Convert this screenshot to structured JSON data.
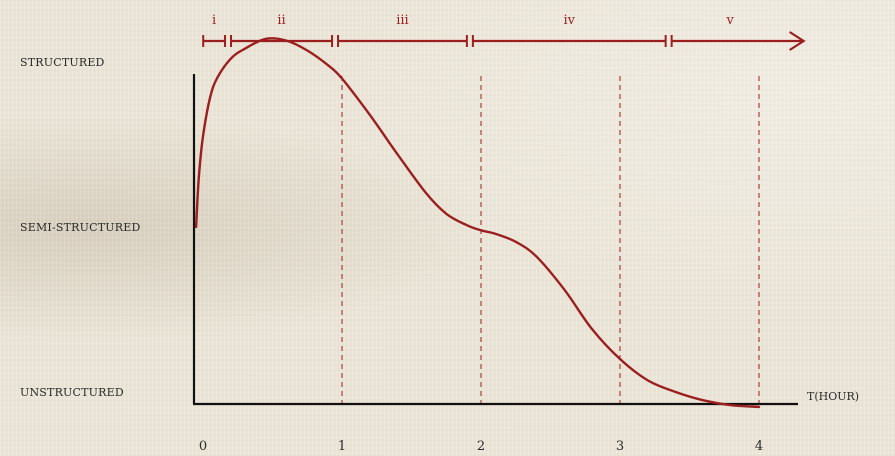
{
  "chart_data": {
    "type": "line",
    "xlabel": "T(HOUR)",
    "x_ticks": [
      "0",
      "1",
      "2",
      "3",
      "4"
    ],
    "xlim": [
      0,
      4.45
    ],
    "y_categories": [
      "UNSTRUCTURED",
      "SEMI-STRUCTURED",
      "STRUCTURED"
    ],
    "ylim": [
      -0.28,
      2.2
    ],
    "series": [
      {
        "x": [
          -0.05,
          -0.03,
          0.0,
          0.05,
          0.1,
          0.2,
          0.3,
          0.45,
          0.6,
          0.75,
          0.9,
          1.0,
          1.2,
          1.4,
          1.6,
          1.75,
          1.9,
          2.0,
          2.1,
          2.25,
          2.4,
          2.6,
          2.8,
          3.0,
          3.2,
          3.4,
          3.6,
          3.8,
          4.0
        ],
        "y": [
          1.0,
          1.3,
          1.55,
          1.78,
          1.9,
          2.02,
          2.08,
          2.14,
          2.13,
          2.07,
          1.98,
          1.9,
          1.68,
          1.44,
          1.21,
          1.08,
          1.01,
          0.98,
          0.96,
          0.91,
          0.82,
          0.62,
          0.38,
          0.2,
          0.07,
          0.0,
          -0.05,
          -0.08,
          -0.09
        ]
      }
    ],
    "vertical_markers": [
      1,
      2,
      3,
      4
    ],
    "phases": [
      "i",
      "ii",
      "iii",
      "iv",
      "v"
    ],
    "phase_bounds": [
      -0.02,
      0.18,
      0.95,
      1.92,
      3.35,
      4.35
    ],
    "grid": false,
    "legend": "none"
  },
  "colors": {
    "curve": "#9b1f1f",
    "axis": "#111111",
    "text": "#2a2a2a",
    "background": "#ece6d8"
  }
}
